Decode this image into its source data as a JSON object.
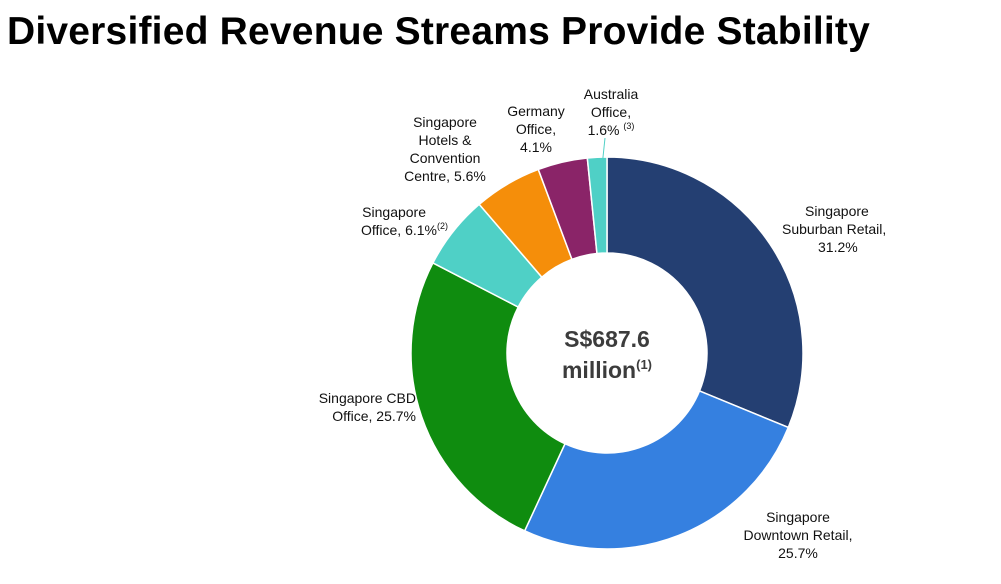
{
  "title": "Diversified Revenue Streams Provide Stability",
  "chart_data": {
    "type": "donut",
    "center_label": {
      "line1": "S$687.6",
      "line2": "million",
      "note": "(1)"
    },
    "slices": [
      {
        "lines": [
          "Singapore",
          "Suburban Retail,",
          "31.2%"
        ],
        "value": 31.2,
        "color": "#243f72",
        "note": ""
      },
      {
        "lines": [
          "Singapore",
          "Downtown Retail,",
          "25.7%"
        ],
        "value": 25.7,
        "color": "#3580e0",
        "note": ""
      },
      {
        "lines": [
          "Singapore CBD",
          "Office, 25.7%"
        ],
        "value": 25.7,
        "color": "#0f8c0f",
        "note": ""
      },
      {
        "lines": [
          "Singapore",
          "Office, 6.1%"
        ],
        "value": 6.1,
        "color": "#4fd0c6",
        "note": "(2)"
      },
      {
        "lines": [
          "Singapore",
          "Hotels &",
          "Convention",
          "Centre, 5.6%"
        ],
        "value": 5.6,
        "color": "#f58e0a",
        "note": ""
      },
      {
        "lines": [
          "Germany",
          "Office,",
          "4.1%"
        ],
        "value": 4.1,
        "color": "#8a2468",
        "note": ""
      },
      {
        "lines": [
          "Australia",
          "Office,",
          "1.6%"
        ],
        "value": 1.6,
        "color": "#4fd0c6",
        "note": "(3)"
      }
    ]
  }
}
